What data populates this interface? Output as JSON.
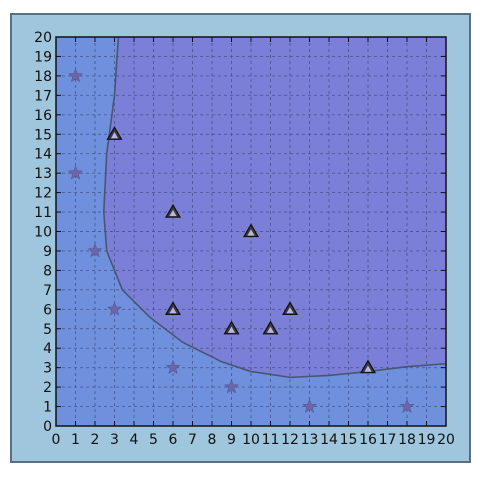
{
  "chart_data": {
    "type": "scatter",
    "title": "",
    "xlabel": "",
    "ylabel": "",
    "xlim": [
      0,
      20
    ],
    "ylim": [
      0,
      20
    ],
    "xticks": [
      "0",
      "1",
      "2",
      "3",
      "4",
      "5",
      "6",
      "7",
      "8",
      "9",
      "10",
      "11",
      "12",
      "13",
      "14",
      "15",
      "16",
      "17",
      "18",
      "19",
      "20"
    ],
    "yticks": [
      "0",
      "1",
      "2",
      "3",
      "4",
      "5",
      "6",
      "7",
      "8",
      "9",
      "10",
      "11",
      "12",
      "13",
      "14",
      "15",
      "16",
      "17",
      "18",
      "19",
      "20"
    ],
    "grid": true,
    "legend": "none",
    "colors": {
      "region_triangle": "#7b7fd8",
      "region_star": "#6f90dd",
      "boundary": "#4a5572",
      "star_marker": "#6b66a8",
      "triangle_marker": "#3a3a4a",
      "grid": "#3f4c80",
      "frame_bg": "#9fc6dc"
    },
    "series": [
      {
        "marker": "star",
        "points": [
          [
            1,
            18
          ],
          [
            1,
            13
          ],
          [
            2,
            9
          ],
          [
            3,
            6
          ],
          [
            6,
            3
          ],
          [
            9,
            2
          ],
          [
            13,
            1
          ],
          [
            18,
            1
          ]
        ]
      },
      {
        "marker": "triangle",
        "points": [
          [
            3,
            15
          ],
          [
            6,
            11
          ],
          [
            10,
            10
          ],
          [
            6,
            6
          ],
          [
            9,
            5
          ],
          [
            11,
            5
          ],
          [
            12,
            6
          ],
          [
            16,
            3
          ]
        ]
      }
    ],
    "decision_boundary": [
      [
        3.2,
        20
      ],
      [
        3,
        17
      ],
      [
        2.6,
        14
      ],
      [
        2.45,
        11
      ],
      [
        2.6,
        9
      ],
      [
        3.4,
        7
      ],
      [
        4.8,
        5.6
      ],
      [
        6.5,
        4.3
      ],
      [
        8.5,
        3.3
      ],
      [
        10,
        2.8
      ],
      [
        12,
        2.5
      ],
      [
        14,
        2.6
      ],
      [
        16,
        2.8
      ],
      [
        18,
        3.05
      ],
      [
        20,
        3.2
      ]
    ]
  }
}
